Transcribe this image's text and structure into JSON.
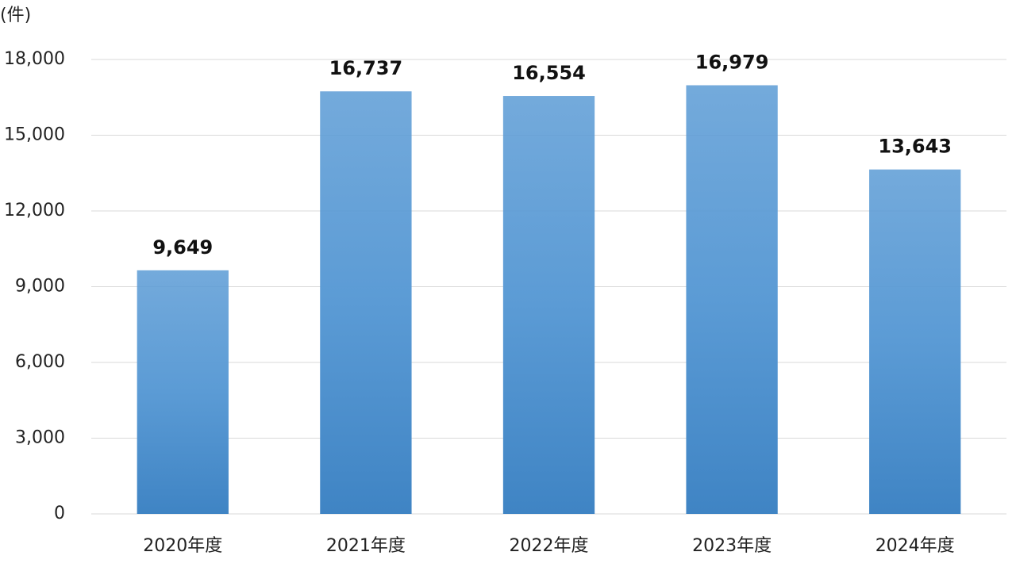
{
  "chart_data": {
    "type": "bar",
    "y_label": "(件)",
    "categories": [
      "2020年度",
      "2021年度",
      "2022年度",
      "2023年度",
      "2024年度"
    ],
    "values": [
      9649,
      16737,
      16554,
      16979,
      13643
    ],
    "value_labels": [
      "9,649",
      "16,737",
      "16,554",
      "16,979",
      "13,643"
    ],
    "color": "#5b9bd5",
    "ylim": [
      0,
      18000
    ],
    "yticks": [
      0,
      {
        "value": 3000,
        "label": "3,000"
      },
      {
        "value": 6000,
        "label": "6,000"
      },
      {
        "value": 9000,
        "label": "9,000"
      },
      {
        "value": 12000,
        "label": "12,000"
      },
      {
        "value": 15000,
        "label": "15,000"
      },
      {
        "value": 18000,
        "label": "18,000"
      }
    ],
    "grid": true
  }
}
